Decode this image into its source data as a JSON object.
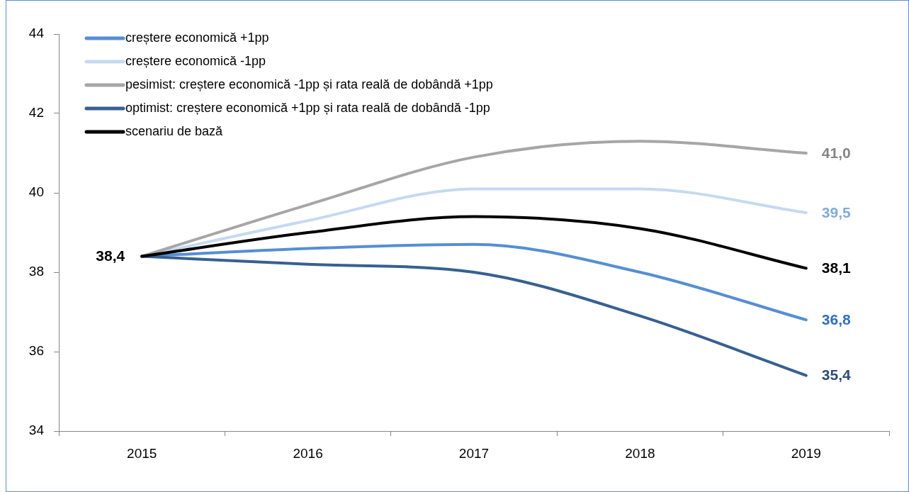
{
  "chart_data": {
    "type": "line",
    "categories": [
      "2015",
      "2016",
      "2017",
      "2018",
      "2019"
    ],
    "series": [
      {
        "name": "creștere economică +1pp",
        "color": "#558ed5",
        "values": [
          38.4,
          38.6,
          38.7,
          38.0,
          36.8
        ],
        "value_labels": [
          null,
          null,
          null,
          null,
          "36,8"
        ]
      },
      {
        "name": "creștere economică -1pp",
        "color": "#c6d9f1",
        "values": [
          38.4,
          39.3,
          40.1,
          40.1,
          39.5
        ],
        "value_labels": [
          null,
          null,
          null,
          null,
          "39,5"
        ]
      },
      {
        "name": "pesimist: creștere economică -1pp și rata reală de dobândă +1pp",
        "color": "#a6a6a6",
        "values": [
          38.4,
          39.7,
          40.9,
          41.3,
          41.0
        ],
        "value_labels": [
          null,
          null,
          null,
          null,
          "41,0"
        ]
      },
      {
        "name": "optimist: creștere economică +1pp și rata reală de dobândă -1pp",
        "color": "#376092",
        "values": [
          38.4,
          38.2,
          38.0,
          36.9,
          35.4
        ],
        "value_labels": [
          null,
          null,
          null,
          null,
          "35,4"
        ]
      },
      {
        "name": "scenariu de bază",
        "color": "#000000",
        "values": [
          38.4,
          39.0,
          39.4,
          39.1,
          38.1
        ],
        "value_labels": [
          "38,4",
          null,
          null,
          null,
          "38,1"
        ]
      }
    ],
    "ylim": [
      34,
      44
    ],
    "yticks": [
      34,
      36,
      38,
      40,
      42,
      44
    ],
    "grid": false,
    "legend": "top left",
    "marker": "none"
  }
}
